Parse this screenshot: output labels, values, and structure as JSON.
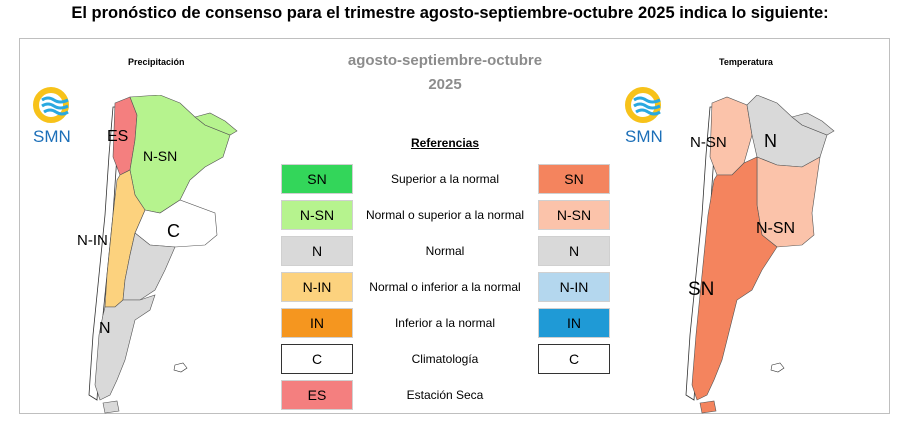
{
  "heading": "El pronóstico de consenso para el trimestre agosto-septiembre-octubre 2025 indica lo siguiente:",
  "period": {
    "line1": "agosto-septiembre-octubre",
    "line2": "2025"
  },
  "references_title": "Referencias",
  "logo_text": "SMN",
  "precip": {
    "title": "Precipitación",
    "labels": {
      "es": "ES",
      "nsn": "N-SN",
      "nin": "N-IN",
      "c": "C",
      "n": "N"
    }
  },
  "temp": {
    "title": "Temperatura",
    "labels": {
      "nsn_north": "N-SN",
      "n": "N",
      "nsn_east": "N-SN",
      "sn": "SN"
    }
  },
  "legend": [
    {
      "label": "SN",
      "description": "Superior a la normal",
      "precip_color": "#33d65a",
      "temp_label": "SN",
      "temp_color": "#f4845e"
    },
    {
      "label": "N-SN",
      "description": "Normal o superior a la normal",
      "precip_color": "#b6f38e",
      "temp_label": "N-SN",
      "temp_color": "#fbc3aa"
    },
    {
      "label": "N",
      "description": "Normal",
      "precip_color": "#d9d9d9",
      "temp_label": "N",
      "temp_color": "#d9d9d9"
    },
    {
      "label": "N-IN",
      "description": "Normal o inferior a la normal",
      "precip_color": "#fcd27e",
      "temp_label": "N-IN",
      "temp_color": "#b4d7ee"
    },
    {
      "label": "IN",
      "description": "Inferior a la normal",
      "precip_color": "#f5961f",
      "temp_label": "IN",
      "temp_color": "#1f9ad6"
    },
    {
      "label": "C",
      "description": "Climatología",
      "precip_color": "#ffffff",
      "temp_label": "C",
      "temp_color": "#ffffff"
    },
    {
      "label": "ES",
      "description": "Estación Seca",
      "precip_color": "#f47f7f"
    }
  ]
}
